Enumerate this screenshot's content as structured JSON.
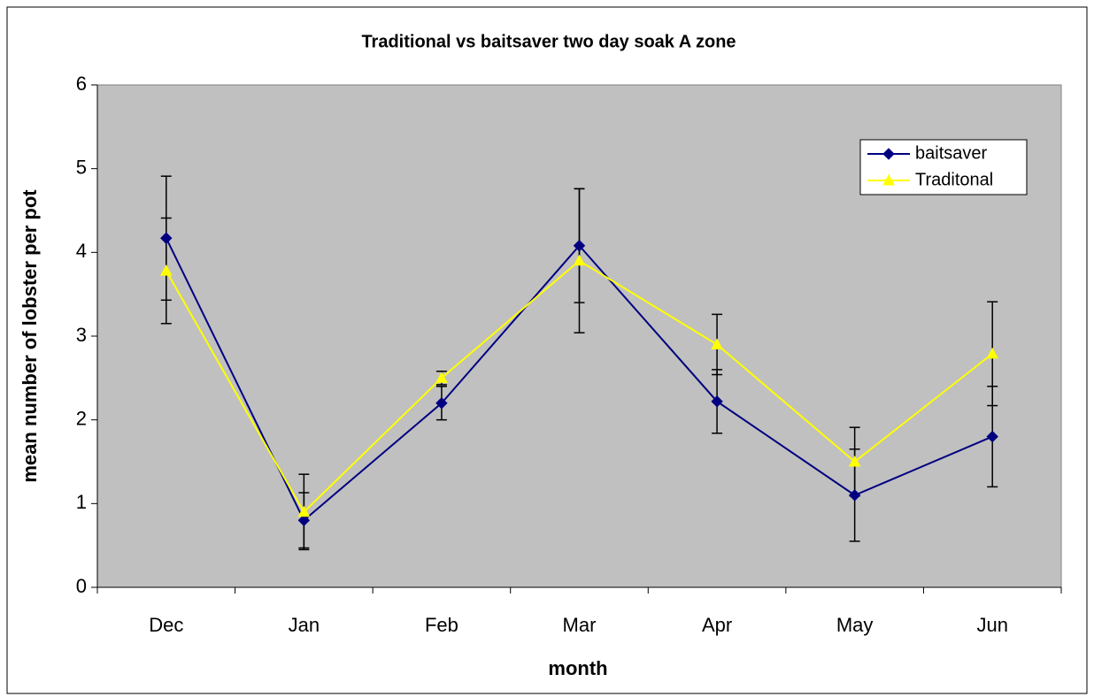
{
  "chart_data": {
    "type": "line",
    "title": "Traditional vs baitsaver two day soak A zone",
    "xlabel": "month",
    "ylabel": "mean number of lobster per pot",
    "categories": [
      "Dec",
      "Jan",
      "Feb",
      "Mar",
      "Apr",
      "May",
      "Jun"
    ],
    "series": [
      {
        "name": "baitsaver",
        "color": "#000080",
        "marker": "diamond",
        "values": [
          4.17,
          0.8,
          2.2,
          4.08,
          2.22,
          1.1,
          1.8
        ],
        "errors": [
          0.74,
          0.33,
          0.2,
          0.68,
          0.38,
          0.55,
          0.6
        ]
      },
      {
        "name": "Traditonal",
        "color": "#ffff00",
        "marker": "triangle",
        "values": [
          3.78,
          0.9,
          2.5,
          3.9,
          2.9,
          1.5,
          2.79
        ],
        "errors": [
          0.63,
          0.45,
          0.08,
          0.86,
          0.36,
          0.41,
          0.62
        ]
      }
    ],
    "ylim": [
      0,
      6
    ],
    "yticks": [
      0,
      1,
      2,
      3,
      4,
      5,
      6
    ],
    "grid": false,
    "legend": "upper right",
    "background": "#c0c0c0"
  }
}
